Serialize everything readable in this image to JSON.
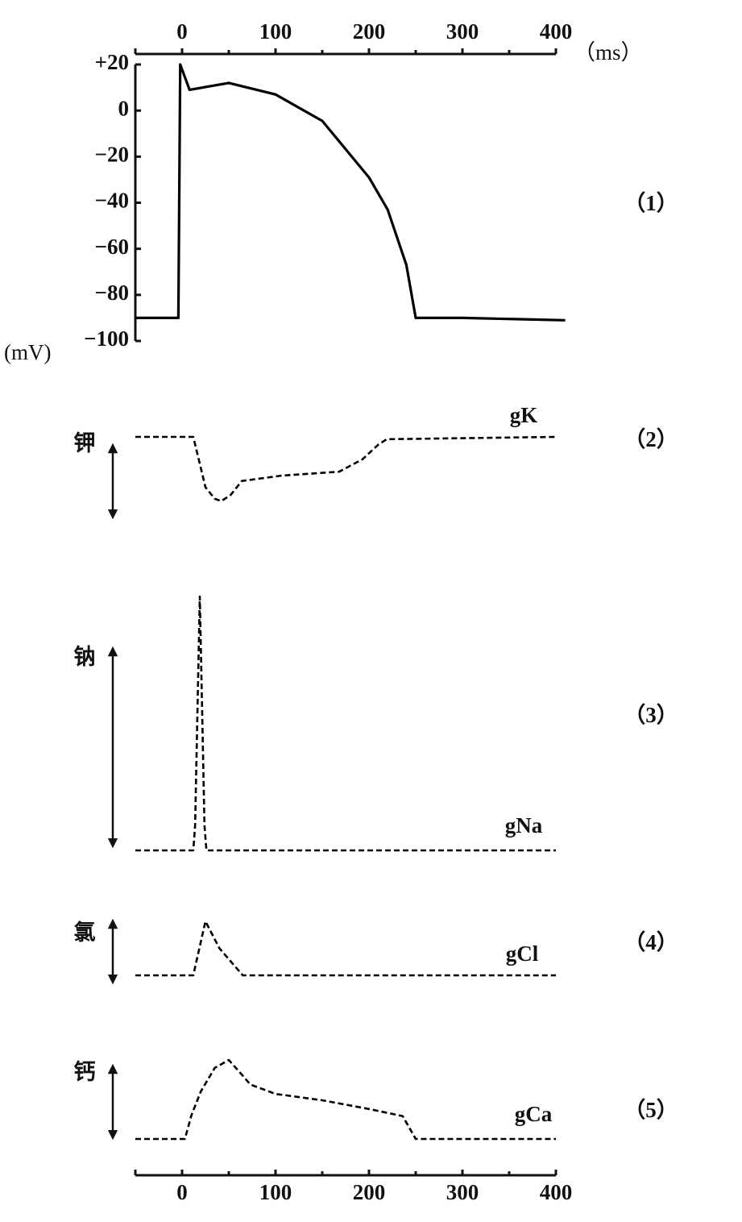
{
  "chart_data": [
    {
      "type": "line",
      "panel_label": "（1）",
      "xlabel": "（ms）",
      "ylabel": "(mV)",
      "xaxis": "top",
      "xlim": [
        -50,
        400
      ],
      "xticks": [
        0,
        100,
        200,
        300,
        400
      ],
      "minor_xticks": [
        50,
        150,
        250,
        350
      ],
      "ylim": [
        -100,
        20
      ],
      "yticks": [
        {
          "value": 20,
          "label": "+20"
        },
        0,
        {
          "value": -20,
          "label": "−20"
        },
        {
          "value": -40,
          "label": "−40"
        },
        {
          "value": -60,
          "label": "−60"
        },
        {
          "value": -80,
          "label": "−80"
        },
        {
          "value": -100,
          "label": "−100"
        }
      ],
      "x": [
        -50,
        -4,
        -2,
        8,
        50,
        100,
        150,
        200,
        220,
        240,
        250,
        300,
        410
      ],
      "series": [
        {
          "color": "#000000",
          "line_style": "solid",
          "values": [
            -90,
            -90,
            20,
            9,
            12,
            7,
            -4.5,
            -29,
            -43,
            -67,
            -90,
            -90,
            -91
          ]
        }
      ]
    },
    {
      "type": "line",
      "panel_label": "（2）",
      "ion": "钾",
      "ylim": [
        0,
        1
      ],
      "x": [
        -50,
        12,
        18,
        25,
        35,
        42,
        52,
        64,
        107,
        168,
        193,
        210,
        219,
        400
      ],
      "series": [
        {
          "name": "gK",
          "color": "#000000",
          "line_style": "dashed",
          "values": [
            1,
            1,
            0.7,
            0.35,
            0.2,
            0.17,
            0.25,
            0.43,
            0.5,
            0.55,
            0.71,
            0.9,
            0.97,
            1
          ]
        }
      ]
    },
    {
      "type": "line",
      "panel_label": "（3）",
      "ion": "钠",
      "ylim": [
        0,
        1
      ],
      "x": [
        -50,
        12,
        14,
        19,
        24,
        26,
        400
      ],
      "series": [
        {
          "name": "gNa",
          "color": "#000000",
          "line_style": "dashed",
          "values": [
            0,
            0,
            0.1,
            1,
            0.1,
            0,
            0
          ]
        }
      ]
    },
    {
      "type": "line",
      "panel_label": "（4）",
      "ion": "氯",
      "ylim": [
        0,
        1
      ],
      "x": [
        -50,
        12,
        25,
        40,
        65,
        400
      ],
      "series": [
        {
          "name": "gCl",
          "color": "#000000",
          "line_style": "dashed",
          "values": [
            0,
            0,
            1,
            0.5,
            0,
            0
          ]
        }
      ]
    },
    {
      "type": "line",
      "panel_label": "（5）",
      "ion": "钙",
      "ylim": [
        0,
        1
      ],
      "xaxis": "bottom",
      "xlim": [
        -50,
        400
      ],
      "xticks": [
        0,
        100,
        200,
        300,
        400
      ],
      "minor_xticks": [
        50,
        150,
        250,
        350
      ],
      "x": [
        -50,
        3,
        10,
        20,
        35,
        50,
        65,
        73,
        100,
        150,
        200,
        236,
        250,
        400
      ],
      "series": [
        {
          "name": "gCa",
          "color": "#000000",
          "line_style": "dashed",
          "values": [
            0,
            0,
            0.3,
            0.6,
            0.9,
            1,
            0.8,
            0.69,
            0.57,
            0.49,
            0.38,
            0.29,
            0,
            0
          ]
        }
      ]
    }
  ]
}
